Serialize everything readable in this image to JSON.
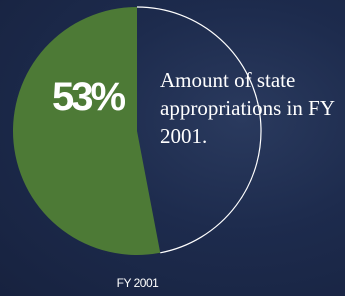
{
  "chart_data": {
    "type": "pie",
    "values": [
      53
    ],
    "value_labels": [
      "53%"
    ],
    "color": "#4d7a36",
    "annotation": "Amount of state appropriations in FY 2001.",
    "xlabel": "FY 2001"
  }
}
